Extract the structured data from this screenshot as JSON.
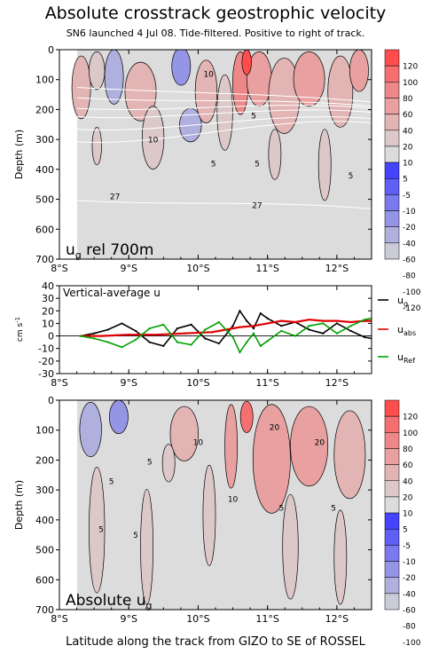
{
  "title": "Absolute crosstrack geostrophic velocity",
  "subtitle": "SN6 launched 4 Jul 08. Tide-filtered. Positive to right of track.",
  "xlabel": "Latitude along the track from GIZO to SE of ROSSEL",
  "colors": {
    "neg": [
      "#4444ff",
      "#5f5ff5",
      "#7a7aee",
      "#9595e6",
      "#b0b0df",
      "#cbcbd8"
    ],
    "neutral": "#dcdcdc",
    "pos": [
      "#dcc8c8",
      "#e2b4b4",
      "#e8a0a0",
      "#ee8888",
      "#f47070",
      "#ff4d4d"
    ],
    "series_g": "#000000",
    "series_abs": "#e00000",
    "series_ref": "#00a000"
  },
  "colorbar": {
    "labels": [
      "120",
      "100",
      "80",
      "60",
      "40",
      "20",
      "10",
      "5",
      "-5",
      "-10",
      "-20",
      "-40",
      "-60",
      "-80",
      "-100",
      "-120"
    ]
  },
  "panels": {
    "top_label": "u",
    "top_label_sub": "g",
    "top_label_rest": " rel 700m",
    "mid_label": "Vertical-average u",
    "bottom_label": "Absolute u",
    "bottom_label_sub": "g",
    "mid_ylabel": "cm s",
    "mid_ylabel_sup": "-1"
  },
  "chart_data": [
    {
      "type": "heatmap",
      "panel": "top",
      "ylabel": "Depth (m)",
      "x_ticks": [
        "8°S",
        "9°S",
        "10°S",
        "11°S",
        "12°S"
      ],
      "x_tick_values": [
        8,
        9,
        10,
        11,
        12
      ],
      "xlim": [
        8,
        12.5
      ],
      "y_ticks": [
        "0",
        "100",
        "200",
        "300",
        "400",
        "500",
        "600",
        "700"
      ],
      "y_tick_values": [
        0,
        100,
        200,
        300,
        400,
        500,
        600,
        700
      ],
      "ylim": [
        0,
        700
      ],
      "contour_labels": [
        {
          "text": "10",
          "x": 9.35,
          "y": 310
        },
        {
          "text": "5",
          "x": 10.22,
          "y": 390
        },
        {
          "text": "5",
          "x": 10.85,
          "y": 390
        },
        {
          "text": "27",
          "x": 8.8,
          "y": 500
        },
        {
          "text": "27",
          "x": 10.85,
          "y": 530
        },
        {
          "text": "5",
          "x": 12.2,
          "y": 430
        },
        {
          "text": "5",
          "x": 10.8,
          "y": 230
        },
        {
          "text": "10",
          "x": 10.15,
          "y": 90
        }
      ]
    },
    {
      "type": "line",
      "panel": "middle",
      "x_ticks": [
        "8°S",
        "9°S",
        "10°S",
        "11°S",
        "12°S"
      ],
      "x_tick_values": [
        8,
        9,
        10,
        11,
        12
      ],
      "xlim": [
        8,
        12.5
      ],
      "y_ticks": [
        "40",
        "30",
        "20",
        "10",
        "0",
        "-10",
        "-20",
        "-30"
      ],
      "y_tick_values": [
        40,
        30,
        20,
        10,
        0,
        -10,
        -20,
        -30
      ],
      "ylim": [
        -30,
        40
      ],
      "series": [
        {
          "name": "u",
          "name_sub": "g",
          "x": [
            8.3,
            8.5,
            8.7,
            8.9,
            9.1,
            9.3,
            9.5,
            9.7,
            9.9,
            10.1,
            10.3,
            10.5,
            10.6,
            10.7,
            10.8,
            10.9,
            11.0,
            11.2,
            11.4,
            11.6,
            11.8,
            12.0,
            12.2,
            12.4,
            12.5
          ],
          "y": [
            0,
            2,
            5,
            10,
            4,
            -5,
            -8,
            6,
            9,
            -2,
            -6,
            8,
            20,
            12,
            6,
            18,
            14,
            8,
            11,
            5,
            2,
            10,
            4,
            -1,
            -2
          ]
        },
        {
          "name": "u",
          "name_sub": "abs",
          "x": [
            8.3,
            8.6,
            9.0,
            9.4,
            9.8,
            10.2,
            10.4,
            10.6,
            10.8,
            11.0,
            11.2,
            11.4,
            11.6,
            11.8,
            12.0,
            12.2,
            12.4,
            12.5
          ],
          "y": [
            0,
            0,
            1,
            1,
            2,
            3,
            5,
            7,
            8,
            10,
            12,
            11,
            13,
            12,
            12,
            11,
            12,
            12
          ]
        },
        {
          "name": "u",
          "name_sub": "Ref",
          "x": [
            8.3,
            8.5,
            8.7,
            8.9,
            9.1,
            9.3,
            9.5,
            9.7,
            9.9,
            10.1,
            10.3,
            10.5,
            10.6,
            10.7,
            10.8,
            10.9,
            11.0,
            11.2,
            11.4,
            11.6,
            11.8,
            12.0,
            12.2,
            12.4,
            12.5
          ],
          "y": [
            0,
            -2,
            -5,
            -9,
            -3,
            6,
            9,
            -5,
            -7,
            5,
            11,
            -1,
            -13,
            -5,
            2,
            -8,
            -4,
            4,
            0,
            8,
            10,
            2,
            8,
            13,
            14
          ]
        }
      ]
    },
    {
      "type": "heatmap",
      "panel": "bottom",
      "ylabel": "Depth (m)",
      "x_ticks": [
        "8°S",
        "9°S",
        "10°S",
        "11°S",
        "12°S"
      ],
      "x_tick_values": [
        8,
        9,
        10,
        11,
        12
      ],
      "xlim": [
        8,
        12.5
      ],
      "y_ticks": [
        "0",
        "100",
        "200",
        "300",
        "400",
        "500",
        "600",
        "700"
      ],
      "y_tick_values": [
        0,
        100,
        200,
        300,
        400,
        500,
        600,
        700
      ],
      "ylim": [
        0,
        700
      ],
      "contour_labels": [
        {
          "text": "20",
          "x": 11.1,
          "y": 100
        },
        {
          "text": "20",
          "x": 11.75,
          "y": 150
        },
        {
          "text": "10",
          "x": 10.0,
          "y": 150
        },
        {
          "text": "5",
          "x": 9.3,
          "y": 215
        },
        {
          "text": "5",
          "x": 8.75,
          "y": 280
        },
        {
          "text": "5",
          "x": 8.6,
          "y": 440
        },
        {
          "text": "5",
          "x": 9.1,
          "y": 460
        },
        {
          "text": "10",
          "x": 10.5,
          "y": 340
        },
        {
          "text": "5",
          "x": 11.2,
          "y": 370
        },
        {
          "text": "5",
          "x": 11.95,
          "y": 370
        }
      ]
    }
  ]
}
